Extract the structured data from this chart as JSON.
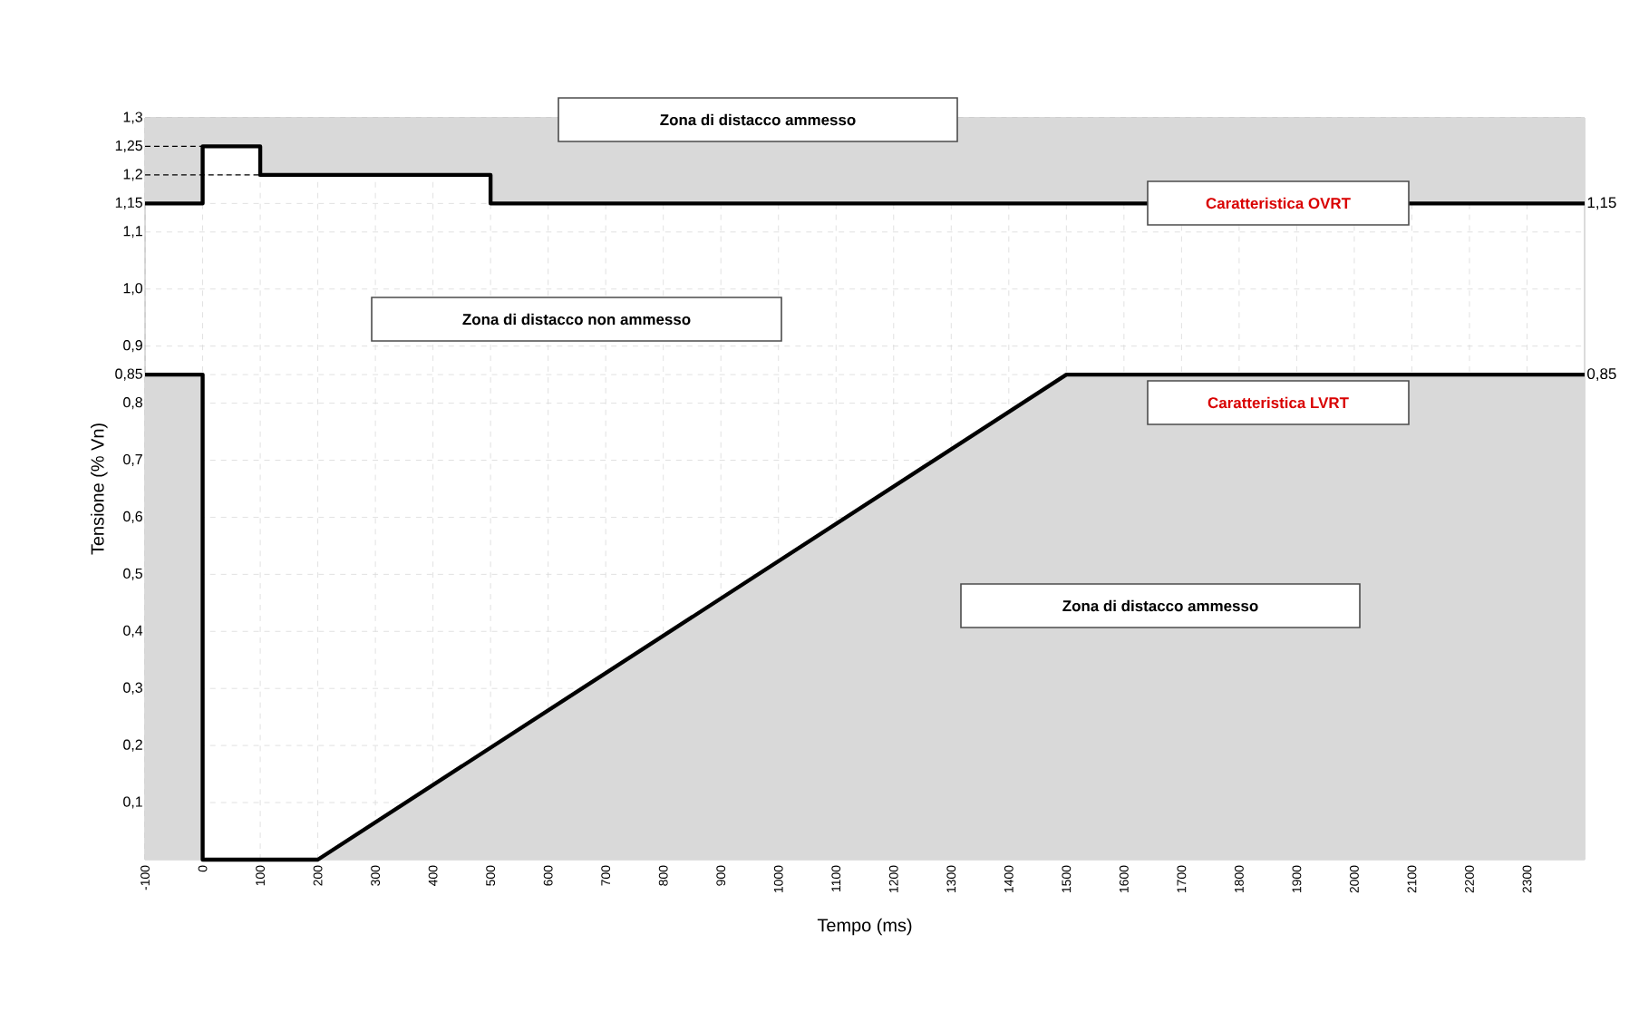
{
  "chart_data": {
    "type": "line",
    "xlabel": "Tempo (ms)",
    "ylabel": "Tensione (% Vn)",
    "xlim": [
      -100,
      2400
    ],
    "xticks": [
      -100,
      0,
      100,
      200,
      300,
      400,
      500,
      600,
      700,
      800,
      900,
      1000,
      1100,
      1200,
      1300,
      1400,
      1500,
      1600,
      1700,
      1800,
      1900,
      2000,
      2100,
      2200,
      2300
    ],
    "ylim": [
      0,
      1.3
    ],
    "yticks": [
      {
        "value": 0.1,
        "label": "0,1"
      },
      {
        "value": 0.2,
        "label": "0,2"
      },
      {
        "value": 0.3,
        "label": "0,3"
      },
      {
        "value": 0.4,
        "label": "0,4"
      },
      {
        "value": 0.5,
        "label": "0,5"
      },
      {
        "value": 0.6,
        "label": "0,6"
      },
      {
        "value": 0.7,
        "label": "0,7"
      },
      {
        "value": 0.8,
        "label": "0,8"
      },
      {
        "value": 0.85,
        "label": "0,85"
      },
      {
        "value": 0.9,
        "label": "0,9"
      },
      {
        "value": 1.0,
        "label": "1,0"
      },
      {
        "value": 1.1,
        "label": "1,1"
      },
      {
        "value": 1.15,
        "label": "1,15"
      },
      {
        "value": 1.2,
        "label": "1,2"
      },
      {
        "value": 1.25,
        "label": "1,25"
      },
      {
        "value": 1.3,
        "label": "1,3"
      }
    ],
    "y2lim": [
      0,
      1.3
    ],
    "y2ticks": [
      {
        "value": 0.85,
        "label": "0,85"
      },
      {
        "value": 1.15,
        "label": "1,15"
      }
    ],
    "grid": true,
    "series": [
      {
        "color": "#000000",
        "line_style": "solid",
        "x": [
          -100,
          0,
          0,
          100,
          100,
          500,
          500,
          2400
        ],
        "values": [
          1.15,
          1.15,
          1.25,
          1.25,
          1.2,
          1.2,
          1.15,
          1.15
        ],
        "lower": [
          1.15,
          1.15,
          1.25,
          1.25,
          1.2,
          1.2,
          1.15,
          1.15
        ],
        "upper": [
          1.3,
          1.3,
          1.3,
          1.3,
          1.3,
          1.3,
          1.3,
          1.3
        ]
      },
      {
        "type": "area",
        "color": "#000000",
        "line_style": "solid",
        "x": [
          -100,
          0,
          0,
          200,
          1500,
          2400
        ],
        "values": [
          0.85,
          0.85,
          0,
          0,
          0.85,
          0.85
        ]
      },
      {
        "color": "#000000",
        "line_style": "dashed",
        "x": [
          -100,
          0
        ],
        "values": [
          1.25,
          1.25
        ]
      },
      {
        "color": "#000000",
        "line_style": "dashed",
        "x": [
          -100,
          100
        ],
        "values": [
          1.2,
          1.2
        ]
      }
    ],
    "annotations": [
      "Zona di distacco ammesso",
      "Zona di distacco non ammesso",
      "Caratteristica OVRT",
      "Caratteristica LVRT",
      "Zona di distacco ammesso"
    ]
  }
}
